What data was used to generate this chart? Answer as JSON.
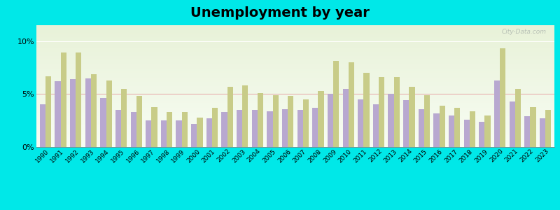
{
  "title": "Unemployment by year",
  "years": [
    1990,
    1991,
    1992,
    1993,
    1994,
    1995,
    1996,
    1997,
    1998,
    1999,
    2000,
    2001,
    2002,
    2003,
    2004,
    2005,
    2006,
    2007,
    2008,
    2009,
    2010,
    2011,
    2012,
    2013,
    2014,
    2015,
    2016,
    2017,
    2018,
    2019,
    2020,
    2021,
    2022,
    2023
  ],
  "sunderland": [
    4.0,
    6.2,
    6.4,
    6.5,
    4.6,
    3.5,
    3.3,
    2.5,
    2.5,
    2.5,
    2.2,
    2.7,
    3.3,
    3.5,
    3.5,
    3.4,
    3.6,
    3.5,
    3.7,
    5.0,
    5.5,
    4.5,
    4.0,
    5.0,
    4.4,
    3.6,
    3.2,
    3.0,
    2.6,
    2.4,
    6.3,
    4.3,
    2.9,
    2.7
  ],
  "massachusetts": [
    6.7,
    8.9,
    8.9,
    6.9,
    6.3,
    5.5,
    4.8,
    3.8,
    3.3,
    3.3,
    2.8,
    3.7,
    5.7,
    5.8,
    5.1,
    4.9,
    4.8,
    4.5,
    5.3,
    8.1,
    8.0,
    7.0,
    6.6,
    6.6,
    5.7,
    4.9,
    3.9,
    3.7,
    3.4,
    3.0,
    9.3,
    5.5,
    3.8,
    3.5
  ],
  "sunderland_color": "#b8a8d0",
  "massachusetts_color": "#c8cc88",
  "outer_bg": "#00e8e8",
  "ylim": [
    0,
    11.5
  ],
  "yticks": [
    0,
    5,
    10
  ],
  "title_fontsize": 14,
  "bar_width": 0.38,
  "hline_5pct_color": "#e8b0b0",
  "gradient_top": "#e8f2d8",
  "gradient_bottom": "#f8fdf4"
}
